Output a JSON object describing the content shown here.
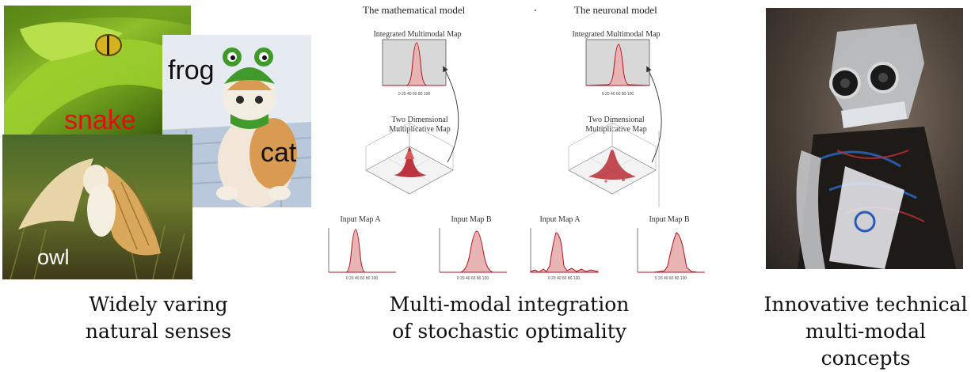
{
  "left_panel": {
    "labels": {
      "snake": "snake",
      "frog": "frog",
      "cat": "cat",
      "owl": "owl"
    },
    "caption_line1": "Widely varing",
    "caption_line2": "natural senses"
  },
  "middle_panel": {
    "header_left": "The mathematical model",
    "header_right": "The neuronal model",
    "integrated_left": "Integrated Multimodal Map",
    "integrated_right": "Integrated Multimodal Map",
    "two_dim_line1": "Two Dimensional",
    "two_dim_line2": "Multiplicative Map",
    "input_a": "Input Map A",
    "input_b": "Input Map B",
    "caption_line1": "Multi-modal integration",
    "caption_line2": "of stochastic optimality"
  },
  "right_panel": {
    "caption_line1": "Innovative technical",
    "caption_line2": "multi-modal concepts"
  },
  "colors": {
    "curve": "#b0121e",
    "fill": "#e8b4b4",
    "plot_bg": "#d8d8d8"
  }
}
